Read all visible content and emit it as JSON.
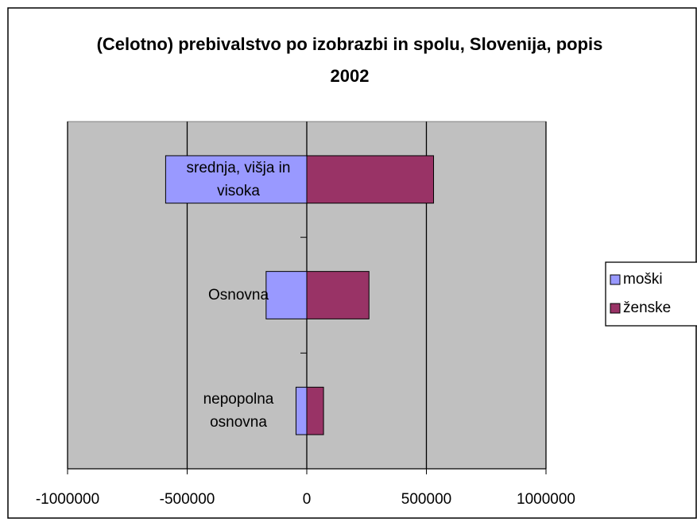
{
  "chart_data": {
    "type": "bar",
    "orientation": "horizontal",
    "title": "(Celotno) prebivalstvo po izobrazbi in spolu, Slovenija, popis 2002",
    "categories": [
      "srednja, višja in visoka",
      "Osnovna",
      "nepopolna osnovna"
    ],
    "series": [
      {
        "name": "moški",
        "color": "#9999ff",
        "values": [
          -590000,
          -170000,
          -45000
        ]
      },
      {
        "name": "ženske",
        "color": "#993366",
        "values": [
          530000,
          260000,
          70000
        ]
      }
    ],
    "xlim": [
      -1000000,
      1000000
    ],
    "xticks": [
      -1000000,
      -500000,
      0,
      500000,
      1000000
    ],
    "grid": true,
    "legend": "right",
    "background": "#c0c0c0"
  }
}
